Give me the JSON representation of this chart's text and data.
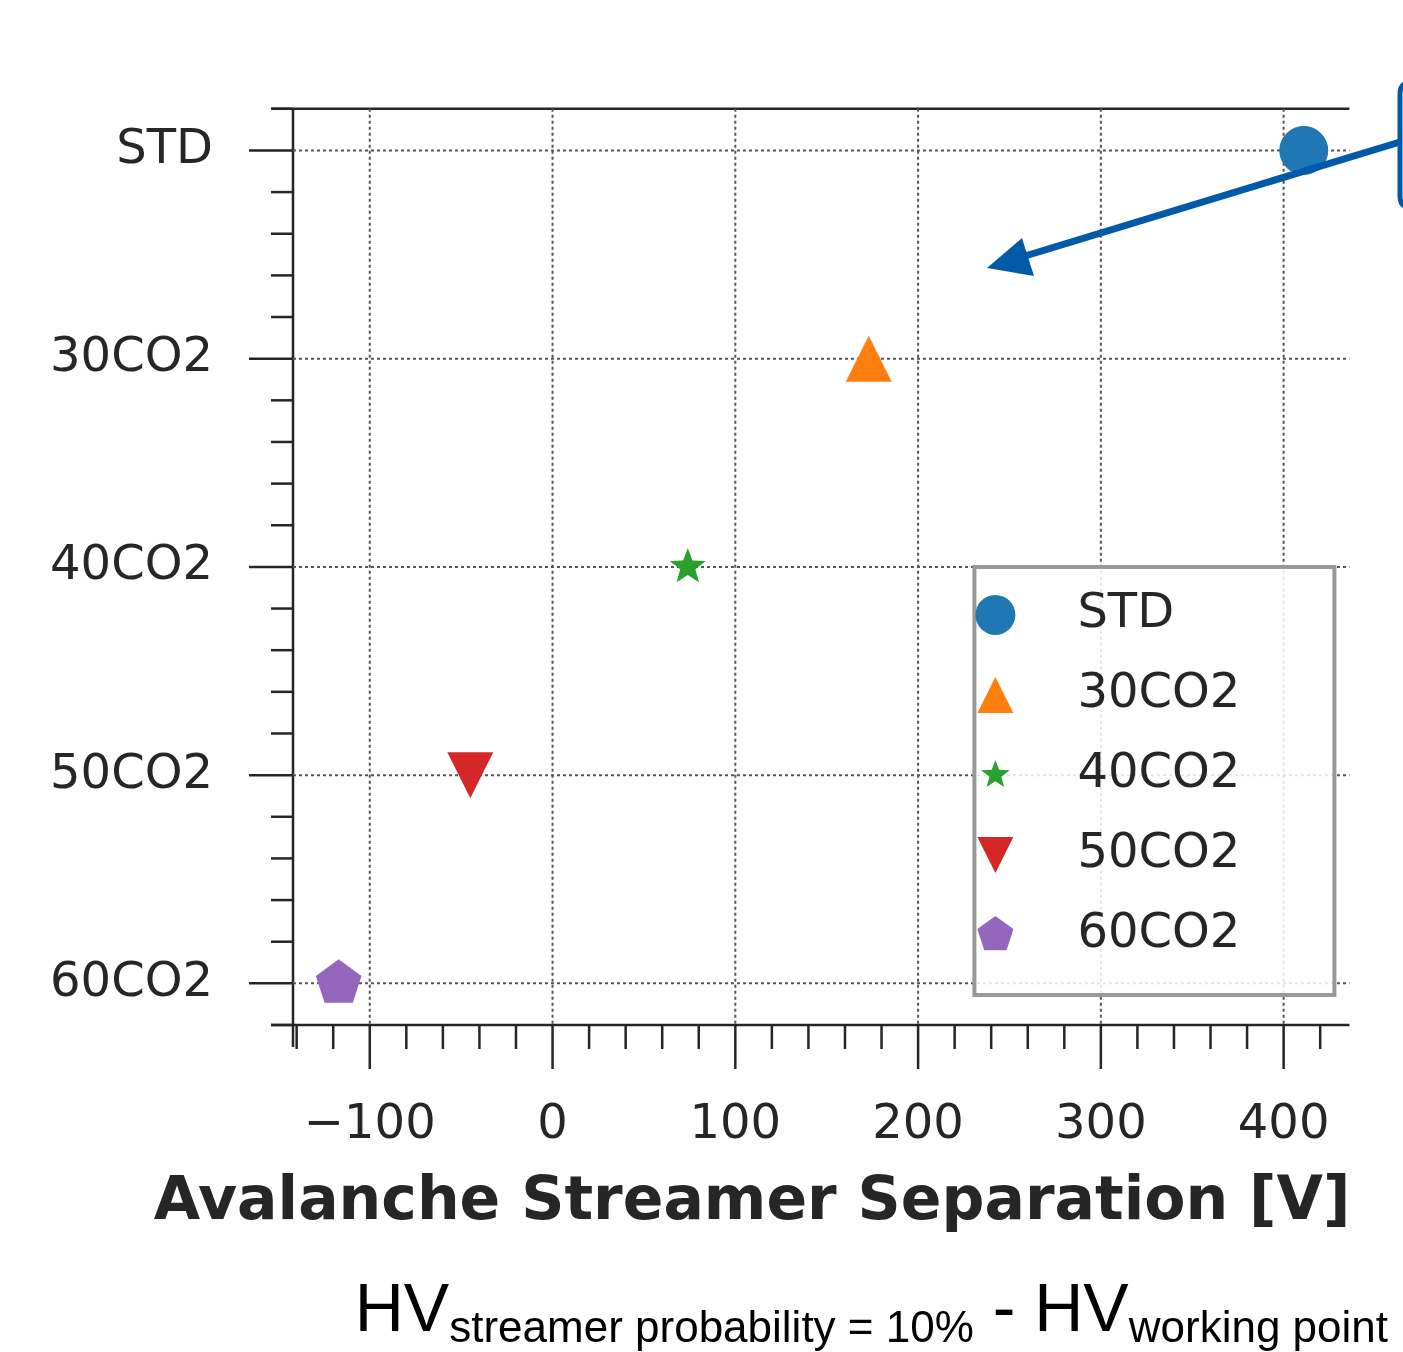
{
  "chart_data": {
    "type": "scatter",
    "orientation": "horizontal",
    "xlabel": "Avalanche Streamer Separation [V]",
    "categories": [
      "STD",
      "30CO2",
      "40CO2",
      "50CO2",
      "60CO2"
    ],
    "series": [
      {
        "name": "STD",
        "color": "#1f77b4",
        "marker": "circle",
        "values": [
          411,
          null,
          null,
          null,
          null
        ]
      },
      {
        "name": "30CO2",
        "color": "#ff7f0e",
        "marker": "triangle",
        "values": [
          null,
          173,
          null,
          null,
          null
        ]
      },
      {
        "name": "40CO2",
        "color": "#2ca02c",
        "marker": "star",
        "values": [
          null,
          null,
          74,
          null,
          null
        ]
      },
      {
        "name": "50CO2",
        "color": "#d62728",
        "marker": "triangle_down",
        "values": [
          null,
          null,
          null,
          -45,
          null
        ]
      },
      {
        "name": "60CO2",
        "color": "#9467bd",
        "values": [
          null,
          null,
          null,
          null,
          -117
        ]
      }
    ],
    "xlim": [
      -142,
      436
    ],
    "xticks": [
      -100,
      0,
      100,
      200,
      300,
      400
    ],
    "grid": true,
    "legend": "right",
    "annotations": [
      "HV$_{streamer probability = 10%}$ - HV$_{working point}$"
    ]
  }
}
